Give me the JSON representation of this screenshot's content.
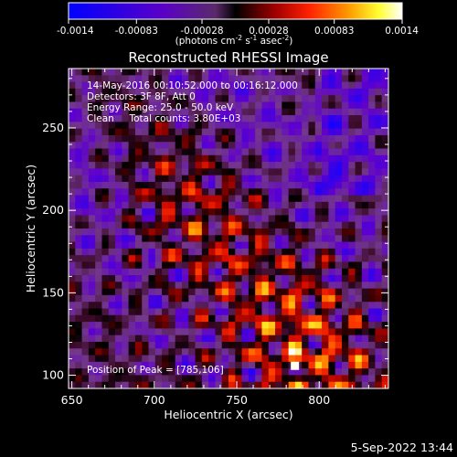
{
  "colorbar": {
    "tick_labels": [
      "-0.0014",
      "-0.00083",
      "-0.00028",
      "0.00028",
      "0.00083",
      "0.0014"
    ],
    "tick_values": [
      -0.0014,
      -0.00083,
      -0.00028,
      0.00028,
      0.00083,
      0.0014
    ],
    "range": [
      -0.0014,
      0.0014
    ],
    "unit_text": "(photons cm",
    "unit_exp1": "-2",
    "unit_mid": " s",
    "unit_exp2": "-1",
    "unit_mid2": " asec",
    "unit_exp3": "-2",
    "unit_close": ")",
    "colors": [
      "#0000ff",
      "#5a00c8",
      "#7a2a8a",
      "#000000",
      "#ff0000",
      "#ff8c00",
      "#ffff00",
      "#ffffff"
    ]
  },
  "chart_data": {
    "type": "heatmap",
    "title": "Reconstructed RHESSI Image",
    "xlabel": "Heliocentric X (arcsec)",
    "ylabel": "Heliocentric Y (arcsec)",
    "xlim": [
      648,
      842
    ],
    "ylim": [
      92,
      286
    ],
    "xticks": [
      650,
      700,
      750,
      800
    ],
    "yticks": [
      100,
      150,
      200,
      250
    ],
    "annotations": {
      "time": "14-May-2016 00:10:52.000 to 00:16:12.000",
      "detectors": "Detectors: 3F 8F, Att 0",
      "energy": "Energy Range: 25.0 - 50.0 keV",
      "method": "Clean     Total counts: 3.80E+03",
      "peak": "Position of Peak = [785,106]"
    },
    "peak_position": [
      785,
      106
    ],
    "total_counts": 3800,
    "energy_range_keV": [
      25.0,
      50.0
    ]
  },
  "footer": {
    "timestamp": "5-Sep-2022 13:44"
  }
}
